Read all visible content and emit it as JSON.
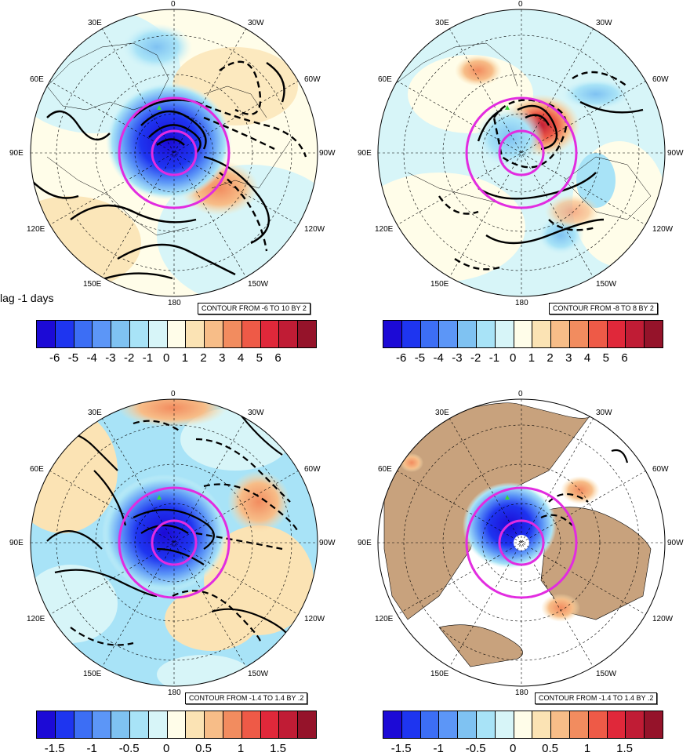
{
  "lag_label": "lag -1 days",
  "colormap": [
    "#1c0ad6",
    "#1e35f0",
    "#3c6ef5",
    "#5c96f7",
    "#7fc2f2",
    "#a8e3f7",
    "#d7f5f8",
    "#fffde9",
    "#fbe3b4",
    "#f7bd88",
    "#f28c5f",
    "#ee5a47",
    "#e0283a",
    "#c01c35",
    "#95132a"
  ],
  "land_color": "#c8a27d",
  "ring_color": "#e22ce0",
  "panels": [
    {
      "id": "top-left",
      "contour_label": "CONTOUR FROM -6 TO 10 BY 2",
      "lon_labels": {
        "l0": "0",
        "l30e": "30E",
        "l30w": "30W",
        "l60e": "60E",
        "l60w": "60W",
        "l90e": "90E",
        "l90w": "90W",
        "l120e": "120E",
        "l120w": "120W",
        "l150e": "150E",
        "l150w": "150W",
        "l180": "180"
      },
      "colorbar_ticks": [
        "-6",
        "-5",
        "-4",
        "-3",
        "-2",
        "-1",
        "0",
        "1",
        "2",
        "3",
        "4",
        "5",
        "6"
      ],
      "has_land": false
    },
    {
      "id": "top-right",
      "contour_label": "CONTOUR FROM -8 TO 8 BY 2",
      "lon_labels": {
        "l0": "0",
        "l30e": "30E",
        "l30w": "30W",
        "l60e": "60E",
        "l60w": "60W",
        "l90e": "90E",
        "l90w": "90W",
        "l120e": "120E",
        "l120w": "120W",
        "l150e": "150E",
        "l150w": "150W",
        "l180": "180"
      },
      "colorbar_ticks": [
        "-6",
        "-5",
        "-4",
        "-3",
        "-2",
        "-1",
        "0",
        "1",
        "2",
        "3",
        "4",
        "5",
        "6"
      ],
      "has_land": false
    },
    {
      "id": "bottom-left",
      "contour_label": "CONTOUR FROM -1.4 TO 1.4 BY .2",
      "lon_labels": {
        "l0": "0",
        "l30e": "30E",
        "l30w": "30W",
        "l60e": "60E",
        "l60w": "60W",
        "l90e": "90E",
        "l90w": "90W",
        "l120e": "120E",
        "l120w": "120W",
        "l150e": "150E",
        "l150w": "150W",
        "l180": "180"
      },
      "colorbar_ticks": [
        "-1.5",
        "-1",
        "-0.5",
        "0",
        "0.5",
        "1",
        "1.5"
      ],
      "has_land": false
    },
    {
      "id": "bottom-right",
      "contour_label": "CONTOUR FROM -1.4 TO 1.4 BY .2",
      "lon_labels": {
        "l0": "0",
        "l30e": "30E",
        "l30w": "30W",
        "l60e": "60E",
        "l60w": "60W",
        "l90e": "90E",
        "l90w": "90W",
        "l120e": "120E",
        "l120w": "120W",
        "l150e": "150E",
        "l150w": "150W",
        "l180": "180"
      },
      "colorbar_ticks": [
        "-1.5",
        "-1",
        "-0.5",
        "0",
        "0.5",
        "1",
        "1.5"
      ],
      "has_land": true
    }
  ]
}
